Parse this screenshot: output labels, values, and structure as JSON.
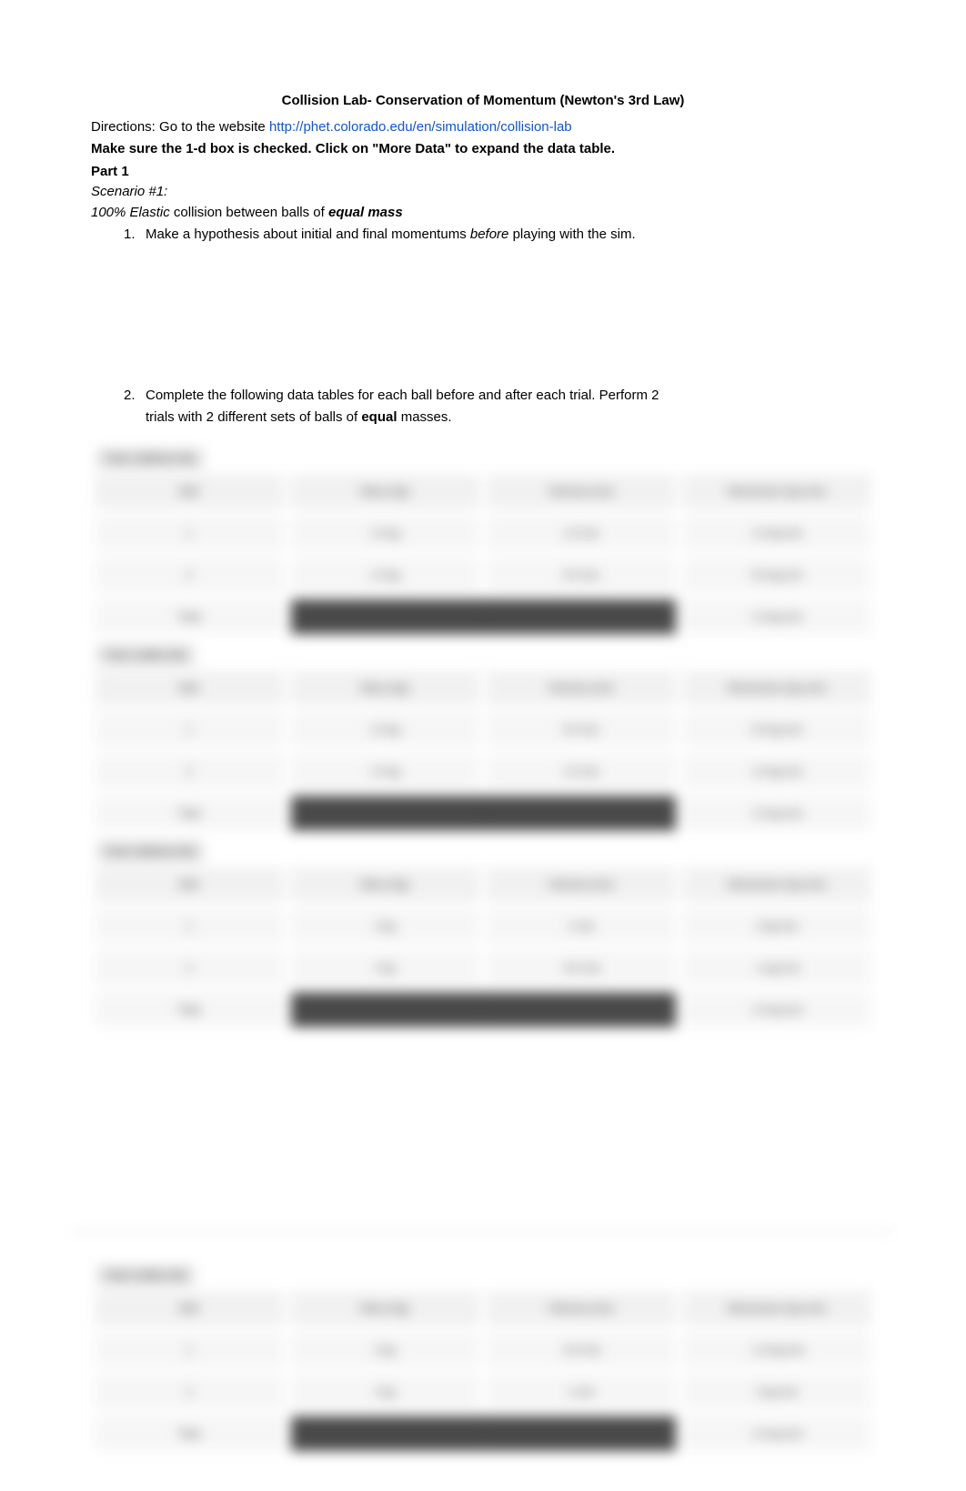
{
  "title": "Collision Lab- Conservation of Momentum (Newton's 3rd Law)",
  "directions_label": "Directions: Go to the website ",
  "link_text": "http://phet.colorado.edu/en/simulation/collision-lab",
  "instruction_bold": "Make sure the 1-d box is checked. Click on \"More Data\" to expand the data table.",
  "part_label": "Part 1",
  "scenario_label": "Scenario #1:",
  "elastic_prefix": "100% Elastic ",
  "elastic_mid": "collision between balls of ",
  "elastic_suffix": "equal mass",
  "item1_num": "1.",
  "item1_text_a": "Make a hypothesis about initial and final momentums ",
  "item1_text_em": "before",
  "item1_text_b": " playing with the sim.",
  "item2_num": "2.",
  "item2_text_a": "Complete the following data tables for each ball before and after each trial. Perform 2",
  "item2_text_b": "trials with 2 different sets of balls of ",
  "item2_bold": "equal",
  "item2_text_c": " masses.",
  "tables": {
    "headers": {
      "ball": "Ball",
      "mass": "Mass (kg)",
      "velocity": "Velocity (m/s)",
      "momentum": "Momentum (kg·m/s)"
    },
    "label1": "Trial 1 (Before Hit)",
    "label2": "Trial 1 (After Hit)",
    "label3": "Trial 2 (Before Hit)",
    "label4": "Trial 2 (After Hit)",
    "t1": {
      "r1": {
        "ball": "1",
        "mass": "1.0 kg",
        "vel": "1.0 m/s",
        "mom": "1.0 kg·m/s"
      },
      "r2": {
        "ball": "2",
        "mass": "1.0 kg",
        "vel": "0.0 m/s",
        "mom": "0.0 kg·m/s"
      },
      "tot": {
        "ball": "Total",
        "vel": "—",
        "mom": "1.0 kg·m/s"
      }
    },
    "t2": {
      "r1": {
        "ball": "1",
        "mass": "1.0 kg",
        "vel": "0.0 m/s",
        "mom": "0.0 kg·m/s"
      },
      "r2": {
        "ball": "2",
        "mass": "1.0 kg",
        "vel": "1.0 m/s",
        "mom": "1.0 kg·m/s"
      },
      "tot": {
        "ball": "Total",
        "vel": "—",
        "mom": "1.0 kg·m/s"
      }
    },
    "t3": {
      "r1": {
        "ball": "1",
        "mass": "2 kg",
        "vel": "1 m/s",
        "mom": "2 kg·m/s"
      },
      "r2": {
        "ball": "2",
        "mass": "2 kg",
        "vel": "-0.5 m/s",
        "mom": "-1 kg·m/s"
      },
      "tot": {
        "ball": "Total",
        "vel": "—",
        "mom": "1.0 kg·m/s"
      }
    },
    "t4": {
      "r1": {
        "ball": "1",
        "mass": "2 kg",
        "vel": "-0.5 m/s",
        "mom": "-1.0 kg·m/s"
      },
      "r2": {
        "ball": "2",
        "mass": "2 kg",
        "vel": "1 m/s",
        "mom": "2 kg·m/s"
      },
      "tot": {
        "ball": "Total",
        "vel": "—",
        "mom": "1.0 kg·m/s"
      }
    }
  },
  "colors": {
    "text": "#000000",
    "link": "#1155cc",
    "table_header_bg": "#f0f0f0",
    "table_cell_bg": "#f6f6f6",
    "dark_cell_bg": "#3a3a3a",
    "dark_cell_text": "#bdbdbd",
    "label_bg": "#e0e0e0",
    "page_bg": "#ffffff"
  }
}
